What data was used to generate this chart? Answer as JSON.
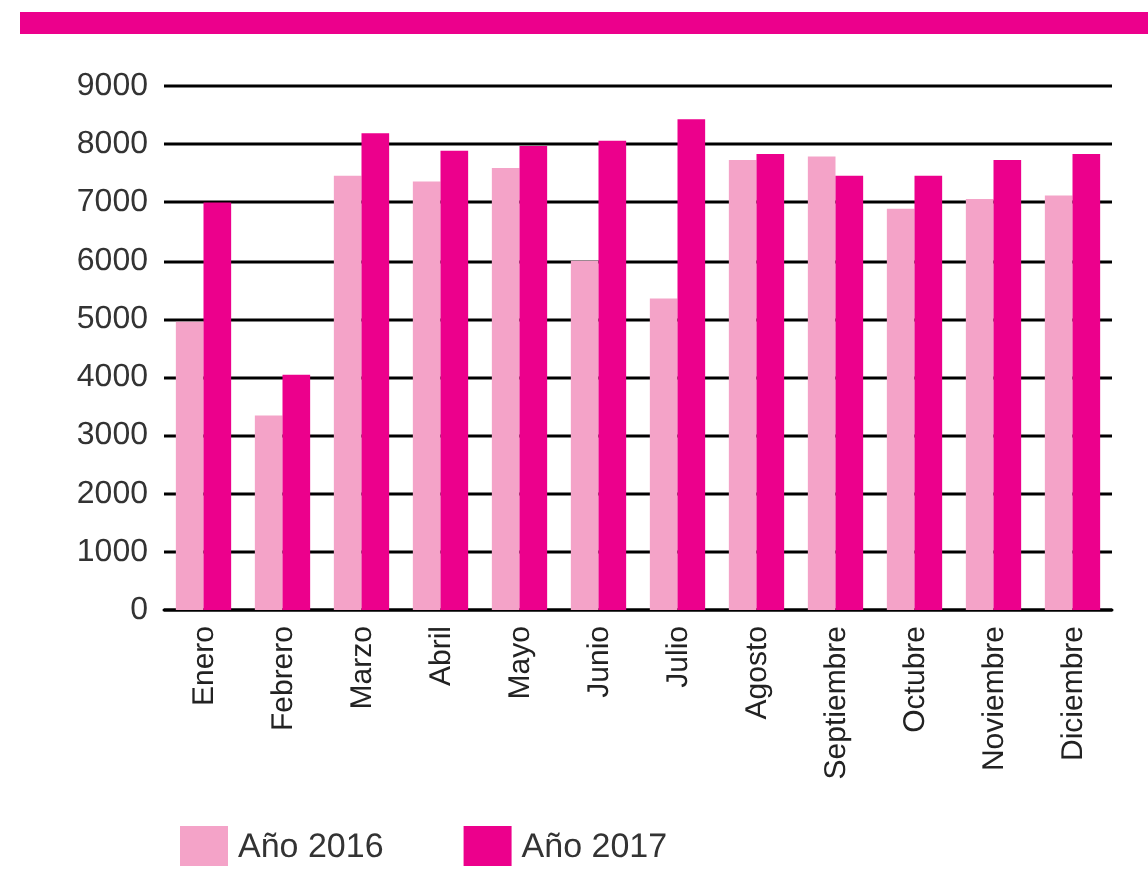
{
  "chart_data": {
    "type": "bar",
    "categories": [
      "Enero",
      "Febrero",
      "Marzo",
      "Abril",
      "Mayo",
      "Junio",
      "Julio",
      "Agosto",
      "Septiembre",
      "Octubre",
      "Noviembre",
      "Diciembre"
    ],
    "series": [
      {
        "name": "Año 2016",
        "color": "#f4a3c8",
        "values": [
          4950,
          3340,
          7460,
          7360,
          7590,
          6000,
          5350,
          7730,
          7790,
          6890,
          7060,
          7120
        ]
      },
      {
        "name": "Año 2017",
        "color": "#ec008c",
        "values": [
          7000,
          4040,
          8190,
          7890,
          7970,
          8060,
          8430,
          7830,
          7460,
          7460,
          7730,
          7830
        ]
      }
    ],
    "ylim": [
      0,
      9000
    ],
    "yticks": [
      0,
      1000,
      2000,
      3000,
      4000,
      5000,
      6000,
      7000,
      8000,
      9000
    ],
    "grid": "y",
    "legend": "bottom left"
  }
}
